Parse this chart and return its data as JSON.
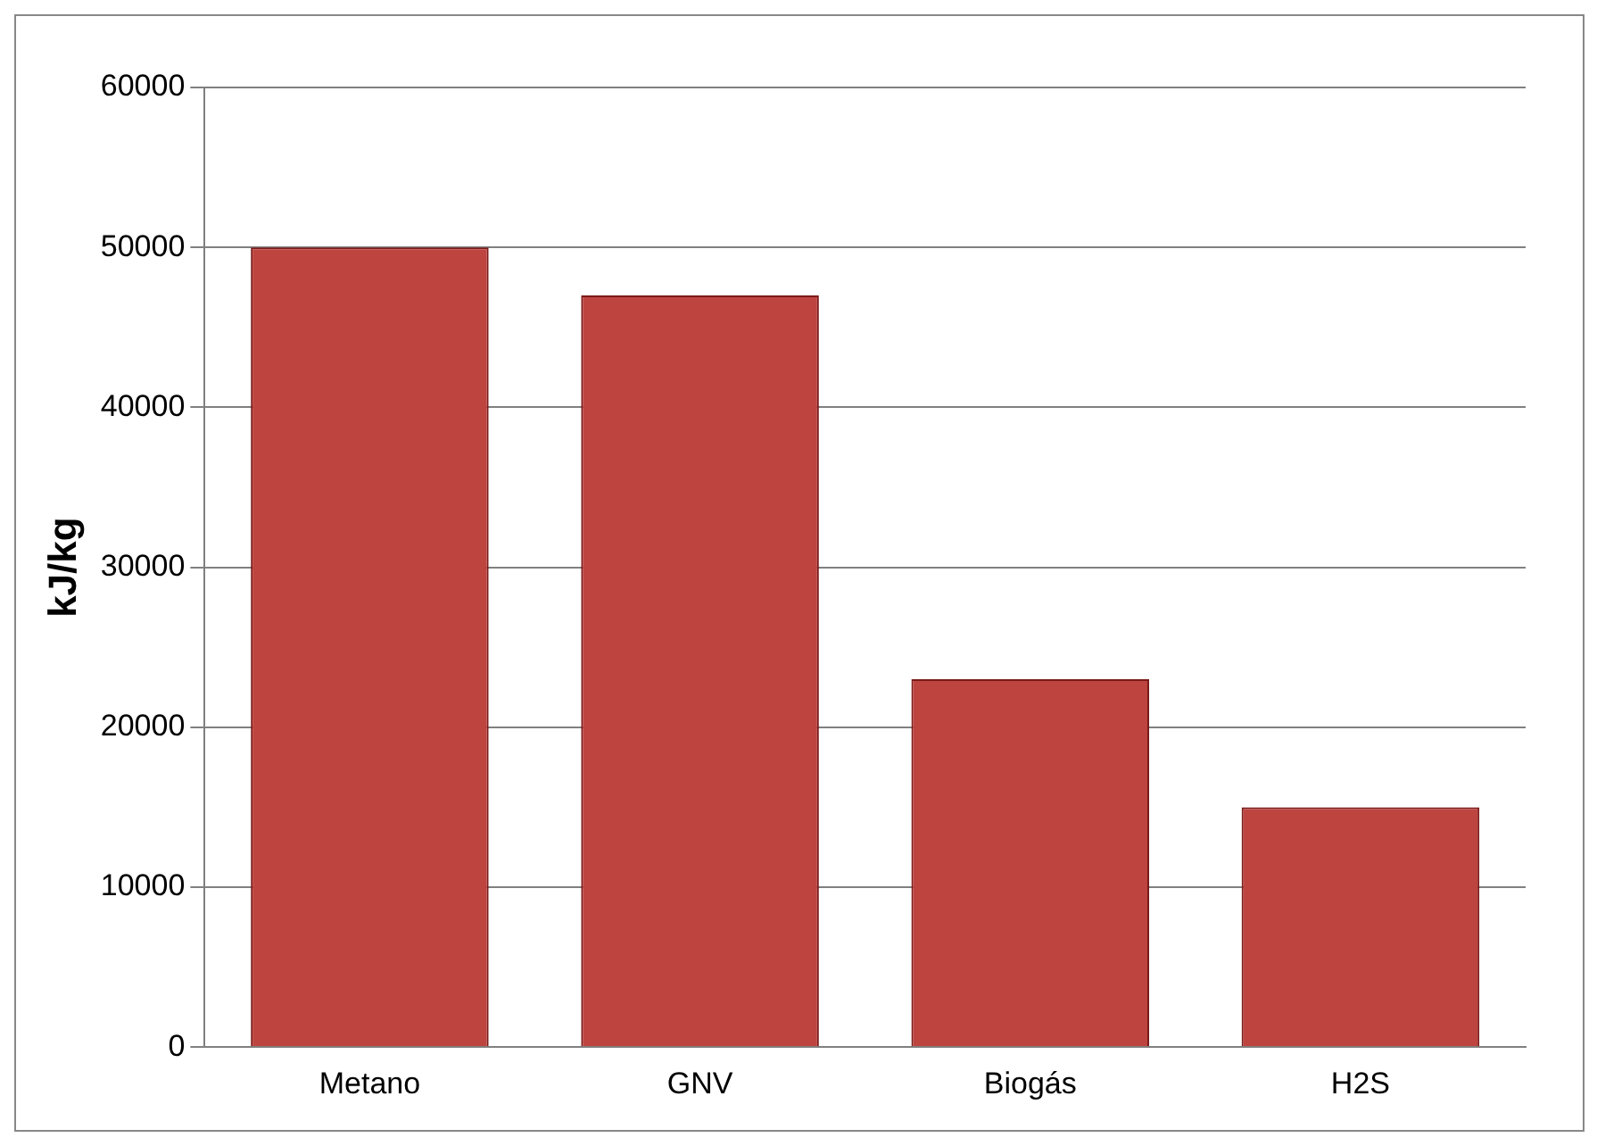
{
  "chart_data": {
    "type": "bar",
    "ylabel": "kJ/kg",
    "categories": [
      "Metano",
      "GNV",
      "Biogás",
      "H2S"
    ],
    "values": [
      50000,
      47000,
      23000,
      15000
    ],
    "color": "#be4440",
    "ylim": [
      0,
      60000
    ],
    "yticks": [
      0,
      10000,
      20000,
      30000,
      40000,
      50000,
      60000
    ],
    "grid": "y",
    "legend": false
  }
}
